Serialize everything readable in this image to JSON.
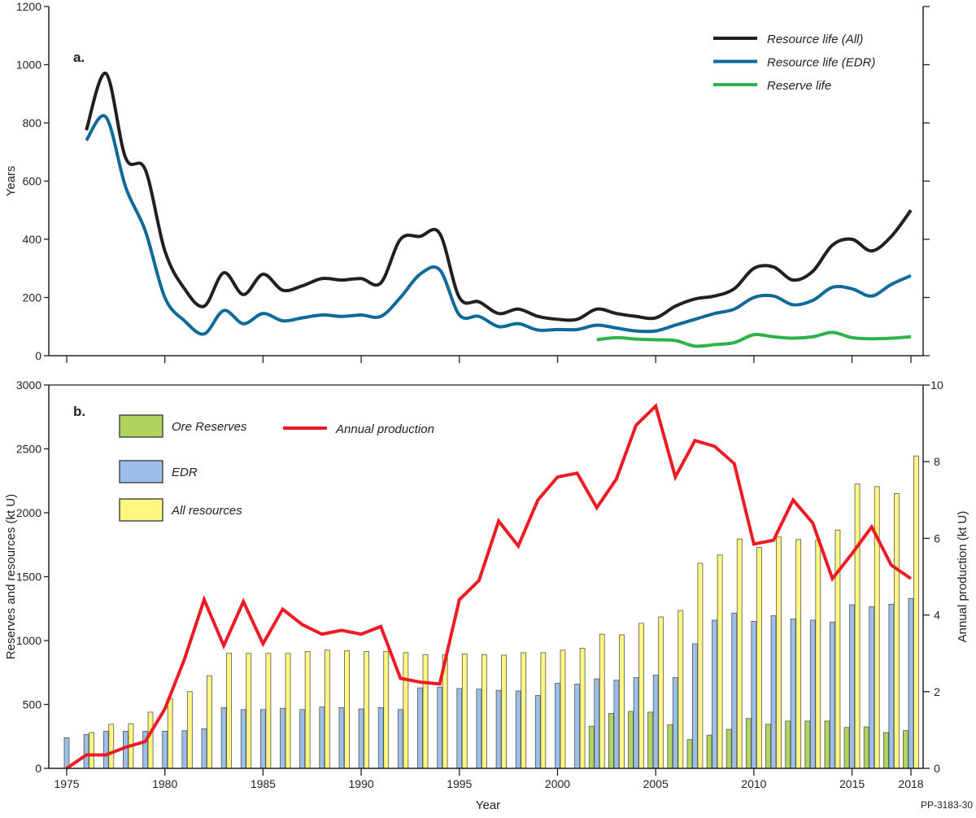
{
  "chart_data": [
    {
      "type": "line",
      "panel_label": "a.",
      "ylabel": "Years",
      "xlabel": "",
      "ylim": [
        0,
        1200
      ],
      "yticks": [
        0,
        200,
        400,
        600,
        800,
        1000,
        1200
      ],
      "xlim": [
        1975,
        2018
      ],
      "legend": "top-right",
      "x": [
        1976,
        1977,
        1978,
        1979,
        1980,
        1981,
        1982,
        1983,
        1984,
        1985,
        1986,
        1987,
        1988,
        1989,
        1990,
        1991,
        1992,
        1993,
        1994,
        1995,
        1996,
        1997,
        1998,
        1999,
        2000,
        2001,
        2002,
        2003,
        2004,
        2005,
        2006,
        2007,
        2008,
        2009,
        2010,
        2011,
        2012,
        2013,
        2014,
        2015,
        2016,
        2017,
        2018
      ],
      "series": [
        {
          "name": "Resource life (All)",
          "color": "#231f20",
          "values": [
            775,
            970,
            680,
            640,
            360,
            230,
            170,
            285,
            210,
            280,
            225,
            240,
            265,
            260,
            265,
            250,
            400,
            410,
            420,
            200,
            185,
            145,
            160,
            135,
            125,
            125,
            160,
            145,
            135,
            130,
            170,
            195,
            205,
            230,
            300,
            305,
            260,
            290,
            380,
            400,
            360,
            410,
            500
          ]
        },
        {
          "name": "Resource life (EDR)",
          "color": "#0e6a96",
          "values": [
            740,
            820,
            580,
            430,
            200,
            120,
            75,
            155,
            110,
            145,
            120,
            130,
            140,
            135,
            140,
            135,
            200,
            280,
            295,
            140,
            135,
            100,
            110,
            88,
            90,
            90,
            105,
            95,
            85,
            85,
            105,
            125,
            145,
            160,
            200,
            205,
            175,
            190,
            235,
            230,
            205,
            245,
            275
          ]
        },
        {
          "name": "Reserve life",
          "color": "#2db34a",
          "values": [
            null,
            null,
            null,
            null,
            null,
            null,
            null,
            null,
            null,
            null,
            null,
            null,
            null,
            null,
            null,
            null,
            null,
            null,
            null,
            null,
            null,
            null,
            null,
            null,
            null,
            null,
            55,
            62,
            57,
            55,
            52,
            33,
            38,
            45,
            72,
            65,
            60,
            65,
            80,
            62,
            58,
            60,
            65
          ]
        }
      ]
    },
    {
      "type": "bar",
      "panel_label": "b.",
      "xlabel": "Year",
      "ylabel": "Reserves and resources (kt U)",
      "y2label": "Annual production (kt U)",
      "ylim": [
        0,
        3000
      ],
      "yticks": [
        0,
        500,
        1000,
        1500,
        2000,
        2500,
        3000
      ],
      "y2lim": [
        0,
        10
      ],
      "y2ticks": [
        0,
        2,
        4,
        6,
        8,
        10
      ],
      "xticks": [
        1975,
        1980,
        1985,
        1990,
        1995,
        2000,
        2005,
        2010,
        2015,
        2018
      ],
      "legend": "top-left",
      "categories": [
        1975,
        1976,
        1977,
        1978,
        1979,
        1980,
        1981,
        1982,
        1983,
        1984,
        1985,
        1986,
        1987,
        1988,
        1989,
        1990,
        1991,
        1992,
        1993,
        1994,
        1995,
        1996,
        1997,
        1998,
        1999,
        2000,
        2001,
        2002,
        2003,
        2004,
        2005,
        2006,
        2007,
        2008,
        2009,
        2010,
        2011,
        2012,
        2013,
        2014,
        2015,
        2016,
        2017,
        2018
      ],
      "series": [
        {
          "name": "Ore Reserves",
          "color": "#b0d45e",
          "values": [
            null,
            null,
            null,
            null,
            null,
            null,
            null,
            null,
            null,
            null,
            null,
            null,
            null,
            null,
            null,
            null,
            null,
            null,
            null,
            null,
            null,
            null,
            null,
            null,
            null,
            null,
            null,
            330,
            430,
            445,
            440,
            340,
            225,
            260,
            305,
            390,
            345,
            370,
            370,
            370,
            320,
            325,
            280,
            295
          ]
        },
        {
          "name": "EDR",
          "color": "#9bbfe8",
          "values": [
            240,
            265,
            290,
            290,
            290,
            290,
            295,
            310,
            475,
            460,
            460,
            470,
            460,
            480,
            475,
            465,
            475,
            460,
            630,
            635,
            625,
            620,
            610,
            605,
            570,
            665,
            660,
            700,
            690,
            710,
            730,
            710,
            975,
            1160,
            1215,
            1150,
            1195,
            1170,
            1160,
            1145,
            1280,
            1265,
            1285,
            1330
          ]
        },
        {
          "name": "All resources",
          "color": "#fff780",
          "values": [
            null,
            280,
            345,
            350,
            440,
            545,
            600,
            725,
            900,
            900,
            900,
            900,
            915,
            925,
            920,
            915,
            915,
            905,
            890,
            890,
            895,
            890,
            885,
            905,
            905,
            925,
            940,
            1050,
            1045,
            1135,
            1185,
            1235,
            1605,
            1670,
            1795,
            1730,
            1810,
            1790,
            1785,
            1865,
            2225,
            2205,
            2150,
            2445
          ]
        },
        {
          "name": "Annual production",
          "color": "#ed1c24",
          "type": "line",
          "axis": "right",
          "values": [
            0,
            0.35,
            0.35,
            0.55,
            0.7,
            1.55,
            2.85,
            4.4,
            3.2,
            4.35,
            3.25,
            4.15,
            3.75,
            3.5,
            3.6,
            3.5,
            3.7,
            2.35,
            2.25,
            2.2,
            4.4,
            4.9,
            6.45,
            5.8,
            7.0,
            7.6,
            7.7,
            6.8,
            7.55,
            8.95,
            9.45,
            7.6,
            8.55,
            8.4,
            7.95,
            5.85,
            5.95,
            7.0,
            6.4,
            4.95,
            5.6,
            6.3,
            5.3,
            4.95
          ]
        }
      ]
    }
  ],
  "figure_code": "PP-3183-30"
}
